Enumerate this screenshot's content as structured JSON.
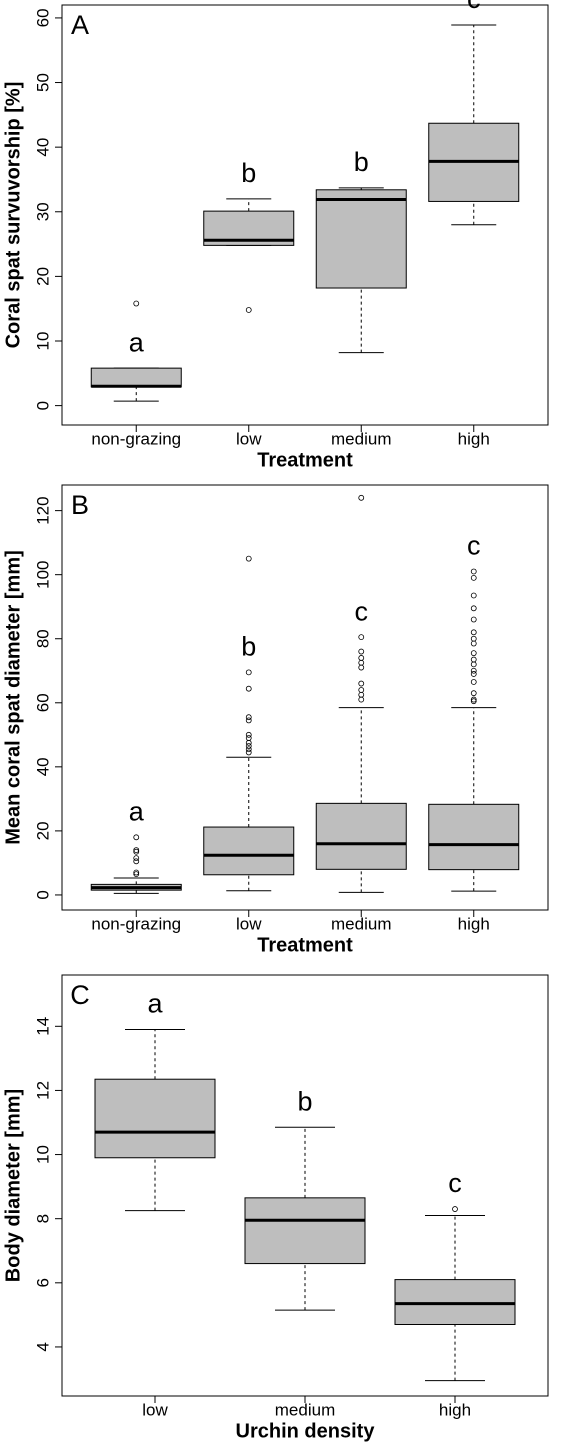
{
  "chart_data": [
    {
      "type": "box",
      "panel": "A",
      "y_label": "Coral spat survuvorship [%]",
      "x_label": "Treatment",
      "categories": [
        "non-grazing",
        "low",
        "medium",
        "high"
      ],
      "letters": [
        "a",
        "b",
        "b",
        "c"
      ],
      "color": "#bebebe",
      "ylim": [
        -3,
        62
      ],
      "yticks": [
        0,
        10,
        20,
        30,
        40,
        50,
        60
      ],
      "boxes": [
        {
          "min": 0.7,
          "q1": 2.9,
          "median": 3.0,
          "q3": 5.8,
          "max": 5.8,
          "outliers": [
            15.8
          ]
        },
        {
          "min": 24.8,
          "q1": 24.8,
          "median": 25.6,
          "q3": 30.1,
          "max": 32,
          "outliers": [
            14.8
          ]
        },
        {
          "min": 8.2,
          "q1": 18.2,
          "median": 31.9,
          "q3": 33.4,
          "max": 33.7,
          "outliers": []
        },
        {
          "min": 28,
          "q1": 31.6,
          "median": 37.8,
          "q3": 43.7,
          "max": 58.9,
          "outliers": []
        }
      ]
    },
    {
      "type": "box",
      "panel": "B",
      "y_label": "Mean coral spat diameter [mm]",
      "x_label": "Treatment",
      "categories": [
        "non-grazing",
        "low",
        "medium",
        "high"
      ],
      "letters": [
        "a",
        "b",
        "c",
        "c"
      ],
      "color": "#bebebe",
      "ylim": [
        -4.7,
        128
      ],
      "yticks": [
        0,
        20,
        40,
        60,
        80,
        100,
        120
      ],
      "boxes": [
        {
          "min": 0.5,
          "q1": 1.5,
          "median": 2.3,
          "q3": 3.3,
          "max": 5.3,
          "outliers": [
            6.5,
            7,
            10.5,
            11.5,
            13.5,
            14,
            18
          ]
        },
        {
          "min": 1.3,
          "q1": 6.3,
          "median": 12.4,
          "q3": 21.2,
          "max": 43,
          "outliers": [
            44.5,
            45.5,
            46.5,
            47.5,
            49,
            50,
            54.5,
            55.5,
            64.4,
            69.5,
            105
          ]
        },
        {
          "min": 0.8,
          "q1": 8,
          "median": 16,
          "q3": 28.6,
          "max": 58.5,
          "outliers": [
            61,
            62.5,
            64,
            66,
            71,
            72.5,
            74,
            76,
            80.5,
            124
          ]
        },
        {
          "min": 1.2,
          "q1": 7.9,
          "median": 15.7,
          "q3": 28.3,
          "max": 58.5,
          "outliers": [
            60.5,
            61,
            63,
            66.5,
            69,
            70,
            72,
            73.5,
            75.5,
            78.5,
            80,
            82,
            86,
            89.5,
            93.5,
            99,
            101
          ]
        }
      ]
    },
    {
      "type": "box",
      "panel": "C",
      "y_label": "Body diameter [mm]",
      "x_label": "Urchin density",
      "categories": [
        "low",
        "medium",
        "high"
      ],
      "letters": [
        "a",
        "b",
        "c"
      ],
      "color": "#bebebe",
      "ylim": [
        2.47,
        15.6
      ],
      "yticks": [
        4,
        6,
        8,
        10,
        12,
        14
      ],
      "boxes": [
        {
          "min": 8.25,
          "q1": 9.9,
          "median": 10.7,
          "q3": 12.35,
          "max": 13.9,
          "outliers": []
        },
        {
          "min": 5.15,
          "q1": 6.6,
          "median": 7.95,
          "q3": 8.65,
          "max": 10.85,
          "outliers": []
        },
        {
          "min": 2.95,
          "q1": 4.7,
          "median": 5.35,
          "q3": 6.1,
          "max": 8.1,
          "outliers": [
            8.3
          ]
        }
      ]
    }
  ]
}
